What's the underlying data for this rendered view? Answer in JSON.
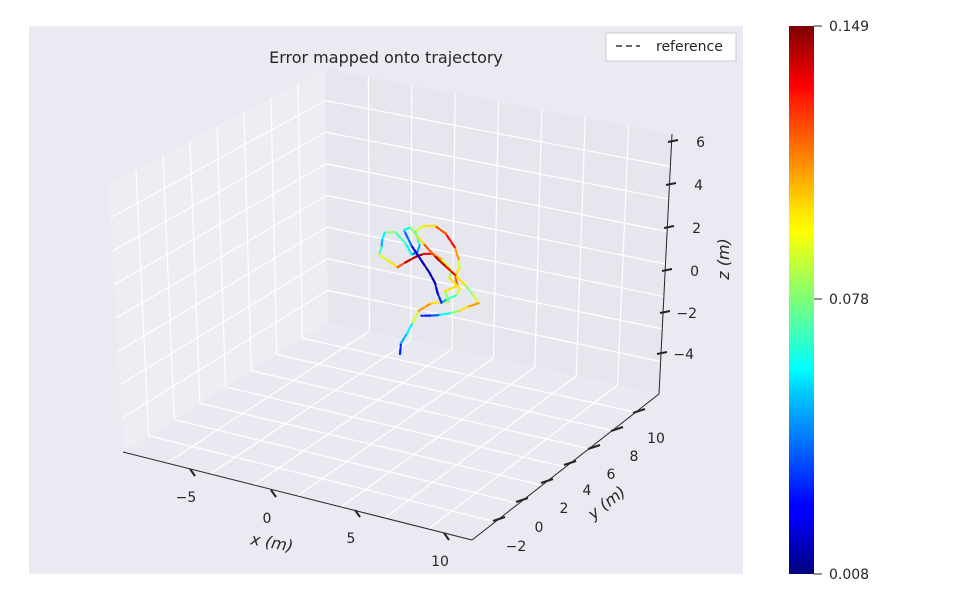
{
  "chart_data": {
    "type": "line",
    "projection": "3d",
    "title": "Error mapped onto trajectory",
    "xlabel": "x (m)",
    "ylabel": "y (m)",
    "zlabel": "z (m)",
    "x_ticks": [
      "−5",
      "0",
      "5",
      "10"
    ],
    "y_ticks": [
      "−2",
      "0",
      "2",
      "4",
      "6",
      "8",
      "10"
    ],
    "z_ticks": [
      "−4",
      "−2",
      "0",
      "2",
      "4",
      "6"
    ],
    "xlim": [
      -9,
      11
    ],
    "ylim": [
      -3,
      11.5
    ],
    "zlim": [
      -5.5,
      6.5
    ],
    "legend": {
      "entries": [
        {
          "name": "reference",
          "style": "dashed",
          "color": "#666666"
        }
      ],
      "placement": "top-right"
    },
    "colorbar": {
      "min": 0.008,
      "max": 0.149,
      "tick_labels": [
        "0.149",
        "0.078",
        "0.008"
      ],
      "colormap": "jet"
    },
    "series": [
      {
        "name": "reference",
        "x": [
          0.0,
          0.0,
          0.3,
          0.6,
          0.9,
          1.6,
          2.6,
          2.3,
          3.0,
          2.8,
          3.0,
          2.9,
          2.6,
          2.0,
          1.3,
          0.5,
          0.0,
          0.2,
          0.0,
          -0.4,
          -0.8,
          -1.5,
          -2.2,
          -2.4,
          -2.5,
          -2.7,
          -2.2,
          -1.7,
          -1.3,
          -0.7,
          -0.3,
          0.2,
          0.7,
          1.2,
          1.0,
          1.6,
          1.3,
          0.6,
          0.3,
          0.0,
          -0.2,
          -0.6,
          -1.1,
          -1.8,
          -2.3,
          -2.0,
          -1.5,
          -1.0,
          -0.3,
          0.4,
          1.1,
          1.7,
          2.2,
          2.6,
          2.0,
          1.5,
          1.0,
          0.4,
          0.0,
          -0.5
        ],
        "y": [
          0.0,
          0.2,
          0.4,
          0.6,
          0.8,
          1.0,
          1.2,
          1.4,
          1.6,
          1.8,
          2.0,
          2.2,
          2.4,
          2.6,
          2.8,
          3.0,
          3.2,
          3.4,
          3.6,
          3.8,
          4.0,
          4.2,
          4.4,
          4.6,
          4.8,
          5.0,
          5.2,
          5.4,
          5.6,
          5.8,
          6.0,
          6.2,
          6.4,
          6.6,
          6.8,
          7.0,
          7.2,
          7.4,
          7.6,
          7.8,
          8.0,
          8.2,
          8.4,
          8.6,
          8.8,
          9.0,
          8.8,
          8.6,
          8.4,
          8.2,
          8.0,
          7.8,
          7.6,
          7.4,
          7.2,
          7.0,
          6.8,
          6.6,
          6.4,
          6.2
        ],
        "z": [
          -4.0,
          -3.5,
          -3.0,
          -2.4,
          -1.8,
          -1.3,
          -1.0,
          -0.6,
          -0.2,
          0.2,
          0.6,
          1.0,
          1.5,
          2.0,
          2.2,
          2.0,
          1.6,
          1.0,
          0.6,
          0.4,
          0.8,
          1.2,
          1.0,
          0.6,
          0.2,
          -0.2,
          -0.4,
          -0.6,
          -0.3,
          0.1,
          0.3,
          0.4,
          0.2,
          -0.2,
          -0.6,
          -1.0,
          -1.4,
          -1.8,
          -2.0,
          -1.6,
          -1.2,
          -0.8,
          -0.4,
          0.2,
          0.8,
          1.0,
          0.7,
          0.4,
          0.0,
          -0.3,
          -0.6,
          -0.9,
          -1.2,
          -1.5,
          -1.8,
          -2.1,
          -2.3,
          -2.5,
          -2.6,
          -2.7
        ],
        "error": [
          0.03,
          0.05,
          0.06,
          0.09,
          0.11,
          0.1,
          0.08,
          0.1,
          0.12,
          0.1,
          0.09,
          0.11,
          0.13,
          0.12,
          0.1,
          0.09,
          0.07,
          0.05,
          0.04,
          0.06,
          0.07,
          0.08,
          0.06,
          0.05,
          0.07,
          0.09,
          0.1,
          0.12,
          0.14,
          0.145,
          0.13,
          0.11,
          0.09,
          0.08,
          0.1,
          0.09,
          0.07,
          0.05,
          0.03,
          0.02,
          0.015,
          0.012,
          0.02,
          0.04,
          0.06,
          0.08,
          0.1,
          0.12,
          0.14,
          0.13,
          0.1,
          0.08,
          0.09,
          0.11,
          0.1,
          0.08,
          0.06,
          0.04,
          0.03,
          0.02
        ]
      }
    ]
  }
}
